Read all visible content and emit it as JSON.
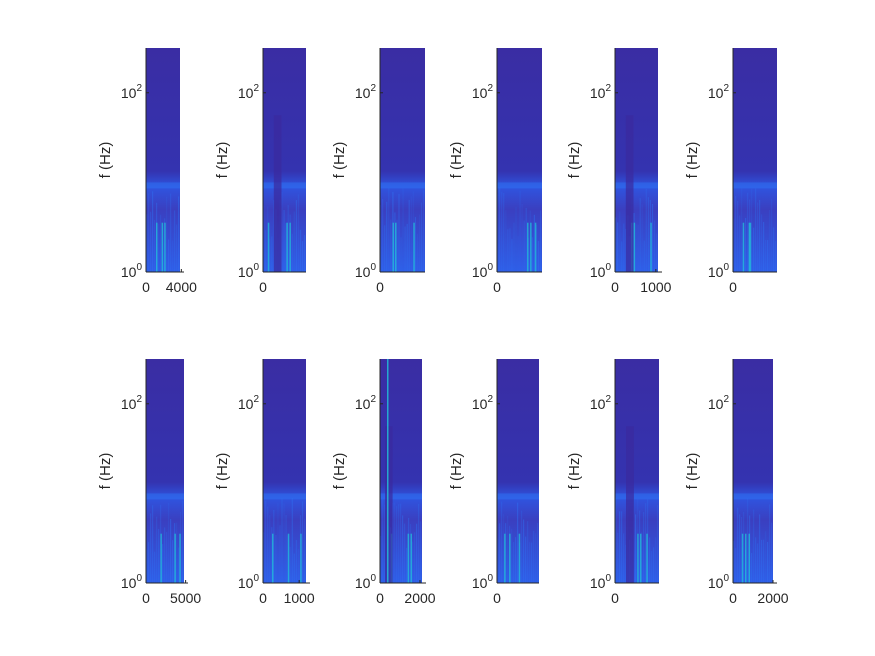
{
  "figure": {
    "background": "#ffffff",
    "text_color": "#262626"
  },
  "chart_data": {
    "type": "heatmap",
    "description_free": true,
    "colormap": "parula",
    "colors": {
      "low": "#3a2a9e",
      "mid": "#2f6ff0",
      "high": "#1fc8d8"
    },
    "layout": {
      "rows": 2,
      "cols": 6
    },
    "panels": [
      {
        "ylabel": "f (Hz)",
        "yscale": "log",
        "ylim": [
          1,
          316
        ],
        "ytick_base": "10",
        "ytick_exps": [
          "0",
          "2"
        ],
        "xticks": [
          0,
          4000
        ],
        "xlim": [
          0,
          4300
        ]
      },
      {
        "ylabel": "f (Hz)",
        "yscale": "log",
        "ylim": [
          1,
          316
        ],
        "ytick_base": "10",
        "ytick_exps": [
          "0",
          "2"
        ],
        "xticks": [
          0
        ],
        "xlim": [
          0,
          1200
        ]
      },
      {
        "ylabel": "f (Hz)",
        "yscale": "log",
        "ylim": [
          1,
          316
        ],
        "ytick_base": "10",
        "ytick_exps": [
          "0",
          "2"
        ],
        "xticks": [
          0
        ],
        "xlim": [
          0,
          1200
        ]
      },
      {
        "ylabel": "f (Hz)",
        "yscale": "log",
        "ylim": [
          1,
          316
        ],
        "ytick_base": "10",
        "ytick_exps": [
          "0",
          "2"
        ],
        "xticks": [
          0
        ],
        "xlim": [
          0,
          1200
        ]
      },
      {
        "ylabel": "f (Hz)",
        "yscale": "log",
        "ylim": [
          1,
          316
        ],
        "ytick_base": "10",
        "ytick_exps": [
          "0",
          "2"
        ],
        "xticks": [
          0,
          1000
        ],
        "xlim": [
          0,
          1150
        ]
      },
      {
        "ylabel": "f (Hz)",
        "yscale": "log",
        "ylim": [
          1,
          316
        ],
        "ytick_base": "10",
        "ytick_exps": [
          "0",
          "2"
        ],
        "xticks": [
          0
        ],
        "xlim": [
          0,
          1200
        ]
      },
      {
        "ylabel": "f (Hz)",
        "yscale": "log",
        "ylim": [
          1,
          316
        ],
        "ytick_base": "10",
        "ytick_exps": [
          "0",
          "2"
        ],
        "xticks": [
          0,
          5000
        ],
        "xlim": [
          0,
          5300
        ]
      },
      {
        "ylabel": "f (Hz)",
        "yscale": "log",
        "ylim": [
          1,
          316
        ],
        "ytick_base": "10",
        "ytick_exps": [
          "0",
          "2"
        ],
        "xticks": [
          0,
          1000
        ],
        "xlim": [
          0,
          1300
        ]
      },
      {
        "ylabel": "f (Hz)",
        "yscale": "log",
        "ylim": [
          1,
          316
        ],
        "ytick_base": "10",
        "ytick_exps": [
          "0",
          "2"
        ],
        "xticks": [
          0,
          2000
        ],
        "xlim": [
          0,
          2300
        ]
      },
      {
        "ylabel": "f (Hz)",
        "yscale": "log",
        "ylim": [
          1,
          316
        ],
        "ytick_base": "10",
        "ytick_exps": [
          "0",
          "2"
        ],
        "xticks": [
          0
        ],
        "xlim": [
          0,
          1200
        ]
      },
      {
        "ylabel": "f (Hz)",
        "yscale": "log",
        "ylim": [
          1,
          316
        ],
        "ytick_base": "10",
        "ytick_exps": [
          "0",
          "2"
        ],
        "xticks": [
          0
        ],
        "xlim": [
          0,
          1200
        ]
      },
      {
        "ylabel": "f (Hz)",
        "yscale": "log",
        "ylim": [
          1,
          316
        ],
        "ytick_base": "10",
        "ytick_exps": [
          "0",
          "2"
        ],
        "xticks": [
          0,
          2000
        ],
        "xlim": [
          0,
          2200
        ]
      }
    ]
  }
}
